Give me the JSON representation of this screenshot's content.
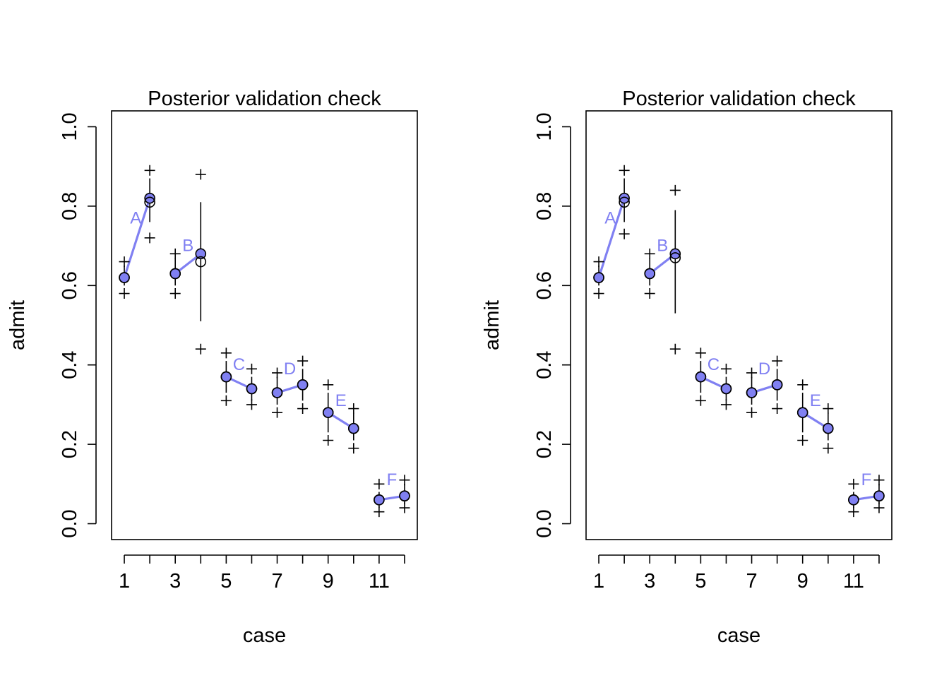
{
  "colors": {
    "observed": "#8080F2",
    "frame": "#000000",
    "background": "#FFFFFF"
  },
  "chart_data": [
    {
      "type": "scatter",
      "title": "Posterior validation check",
      "xlabel": "case",
      "ylabel": "admit",
      "xlim": [
        0.5,
        12.5
      ],
      "ylim": [
        -0.04,
        1.04
      ],
      "x_ticks": [
        1,
        2,
        3,
        4,
        5,
        6,
        7,
        8,
        9,
        10,
        11,
        12
      ],
      "x_tick_labels": [
        "1",
        "",
        "3",
        "",
        "5",
        "",
        "7",
        "",
        "9",
        "",
        "11",
        ""
      ],
      "y_ticks": [
        0.0,
        0.2,
        0.4,
        0.6,
        0.8,
        1.0
      ],
      "y_tick_labels": [
        "0.0",
        "0.2",
        "0.4",
        "0.6",
        "0.8",
        "1.0"
      ],
      "observed": [
        0.62,
        0.82,
        0.63,
        0.68,
        0.37,
        0.34,
        0.33,
        0.35,
        0.28,
        0.24,
        0.06,
        0.07
      ],
      "predicted_mean": [
        0.62,
        0.81,
        0.63,
        0.66,
        0.37,
        0.34,
        0.33,
        0.35,
        0.28,
        0.24,
        0.06,
        0.07
      ],
      "mean_interval": [
        [
          0.6,
          0.65
        ],
        [
          0.76,
          0.87
        ],
        [
          0.6,
          0.67
        ],
        [
          0.51,
          0.81
        ],
        [
          0.33,
          0.41
        ],
        [
          0.31,
          0.37
        ],
        [
          0.3,
          0.37
        ],
        [
          0.31,
          0.39
        ],
        [
          0.23,
          0.33
        ],
        [
          0.21,
          0.28
        ],
        [
          0.04,
          0.08
        ],
        [
          0.05,
          0.1
        ]
      ],
      "prediction_interval": [
        [
          0.58,
          0.66
        ],
        [
          0.72,
          0.89
        ],
        [
          0.58,
          0.68
        ],
        [
          0.44,
          0.88
        ],
        [
          0.31,
          0.43
        ],
        [
          0.3,
          0.39
        ],
        [
          0.28,
          0.38
        ],
        [
          0.29,
          0.41
        ],
        [
          0.21,
          0.35
        ],
        [
          0.19,
          0.29
        ],
        [
          0.03,
          0.1
        ],
        [
          0.04,
          0.11
        ]
      ],
      "departments": [
        {
          "label": "A",
          "x": 1.45,
          "y": 0.77
        },
        {
          "label": "B",
          "x": 3.5,
          "y": 0.7
        },
        {
          "label": "C",
          "x": 5.5,
          "y": 0.4
        },
        {
          "label": "D",
          "x": 7.5,
          "y": 0.39
        },
        {
          "label": "E",
          "x": 9.5,
          "y": 0.31
        },
        {
          "label": "F",
          "x": 11.5,
          "y": 0.11
        }
      ]
    },
    {
      "type": "scatter",
      "title": "Posterior validation check",
      "xlabel": "case",
      "ylabel": "admit",
      "xlim": [
        0.5,
        12.5
      ],
      "ylim": [
        -0.04,
        1.04
      ],
      "x_ticks": [
        1,
        2,
        3,
        4,
        5,
        6,
        7,
        8,
        9,
        10,
        11,
        12
      ],
      "x_tick_labels": [
        "1",
        "",
        "3",
        "",
        "5",
        "",
        "7",
        "",
        "9",
        "",
        "11",
        ""
      ],
      "y_ticks": [
        0.0,
        0.2,
        0.4,
        0.6,
        0.8,
        1.0
      ],
      "y_tick_labels": [
        "0.0",
        "0.2",
        "0.4",
        "0.6",
        "0.8",
        "1.0"
      ],
      "observed": [
        0.62,
        0.82,
        0.63,
        0.68,
        0.37,
        0.34,
        0.33,
        0.35,
        0.28,
        0.24,
        0.06,
        0.07
      ],
      "predicted_mean": [
        0.62,
        0.81,
        0.63,
        0.67,
        0.37,
        0.34,
        0.33,
        0.35,
        0.28,
        0.24,
        0.06,
        0.07
      ],
      "mean_interval": [
        [
          0.6,
          0.65
        ],
        [
          0.76,
          0.87
        ],
        [
          0.6,
          0.67
        ],
        [
          0.53,
          0.79
        ],
        [
          0.33,
          0.41
        ],
        [
          0.31,
          0.37
        ],
        [
          0.3,
          0.37
        ],
        [
          0.31,
          0.39
        ],
        [
          0.23,
          0.33
        ],
        [
          0.21,
          0.28
        ],
        [
          0.04,
          0.08
        ],
        [
          0.05,
          0.1
        ]
      ],
      "prediction_interval": [
        [
          0.58,
          0.66
        ],
        [
          0.73,
          0.89
        ],
        [
          0.58,
          0.68
        ],
        [
          0.44,
          0.84
        ],
        [
          0.31,
          0.43
        ],
        [
          0.3,
          0.39
        ],
        [
          0.28,
          0.38
        ],
        [
          0.29,
          0.41
        ],
        [
          0.21,
          0.35
        ],
        [
          0.19,
          0.29
        ],
        [
          0.03,
          0.1
        ],
        [
          0.04,
          0.11
        ]
      ],
      "departments": [
        {
          "label": "A",
          "x": 1.45,
          "y": 0.77
        },
        {
          "label": "B",
          "x": 3.5,
          "y": 0.7
        },
        {
          "label": "C",
          "x": 5.5,
          "y": 0.4
        },
        {
          "label": "D",
          "x": 7.5,
          "y": 0.39
        },
        {
          "label": "E",
          "x": 9.5,
          "y": 0.31
        },
        {
          "label": "F",
          "x": 11.5,
          "y": 0.11
        }
      ]
    }
  ]
}
